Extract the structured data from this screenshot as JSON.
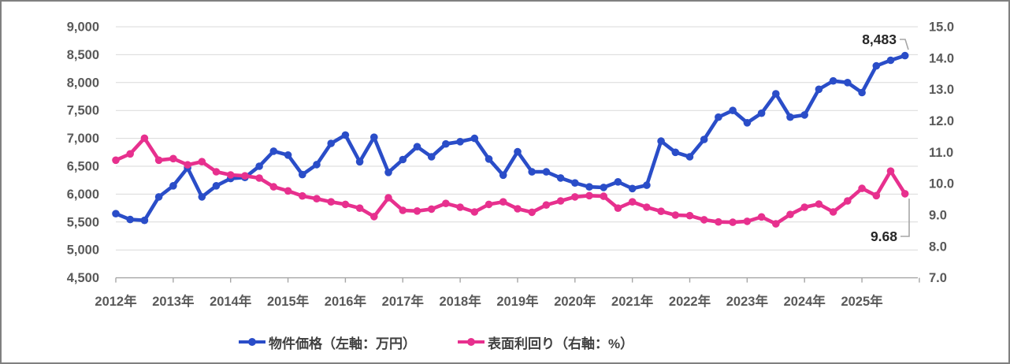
{
  "chart": {
    "annotations": {
      "price_latest_label": "8,483",
      "yield_latest_label": "9.68"
    },
    "legend": {
      "price_label": "物件価格（左軸：万円）",
      "yield_label": "表面利回り（右軸：%）"
    },
    "colors": {
      "price_series": "#2a4dc8",
      "yield_series": "#e7308e",
      "gridline": "#d9d9d9",
      "axis_line": "#a6a6a6",
      "axis_text": "#595959",
      "annotation_text": "#262626",
      "leader_line": "#a6a6a6",
      "frame_border": "#808080"
    }
  },
  "chart_data": {
    "type": "line",
    "frequency": "quarterly",
    "points_per_year": 4,
    "x_year_labels": [
      "2012年",
      "2013年",
      "2014年",
      "2015年",
      "2016年",
      "2017年",
      "2018年",
      "2019年",
      "2020年",
      "2021年",
      "2022年",
      "2023年",
      "2024年",
      "2025年"
    ],
    "left_axis": {
      "title": "物件価格（万円）",
      "min": 4500,
      "max": 9000,
      "step": 500,
      "tick_labels": [
        "9,000",
        "8,500",
        "8,000",
        "7,500",
        "7,000",
        "6,500",
        "6,000",
        "5,500",
        "5,000",
        "4,500"
      ]
    },
    "right_axis": {
      "title": "表面利回り（%）",
      "min": 7.0,
      "max": 15.0,
      "step": 1.0,
      "tick_labels": [
        "15.0",
        "14.0",
        "13.0",
        "12.0",
        "11.0",
        "10.0",
        "9.0",
        "8.0",
        "7.0"
      ]
    },
    "grid": true,
    "legend_position": "bottom",
    "series": [
      {
        "name": "物件価格（左軸：万円）",
        "axis": "left",
        "color": "#2a4dc8",
        "values": [
          5650,
          5545,
          5530,
          5950,
          6150,
          6470,
          5950,
          6150,
          6280,
          6300,
          6500,
          6770,
          6700,
          6350,
          6530,
          6910,
          7060,
          6580,
          7020,
          6390,
          6620,
          6850,
          6670,
          6900,
          6940,
          7000,
          6630,
          6340,
          6760,
          6400,
          6400,
          6290,
          6200,
          6130,
          6120,
          6220,
          6100,
          6160,
          6950,
          6750,
          6670,
          6980,
          7380,
          7500,
          7280,
          7450,
          7800,
          7380,
          7420,
          7880,
          8030,
          8000,
          7820,
          8300,
          8400,
          8483
        ],
        "last_value_annotation": "8,483"
      },
      {
        "name": "表面利回り（右軸：%）",
        "axis": "right",
        "color": "#e7308e",
        "values": [
          10.75,
          10.95,
          11.45,
          10.75,
          10.8,
          10.6,
          10.7,
          10.38,
          10.28,
          10.25,
          10.18,
          9.9,
          9.77,
          9.61,
          9.52,
          9.42,
          9.34,
          9.22,
          8.95,
          9.55,
          9.15,
          9.13,
          9.19,
          9.37,
          9.25,
          9.1,
          9.34,
          9.42,
          9.2,
          9.09,
          9.32,
          9.45,
          9.58,
          9.62,
          9.6,
          9.22,
          9.42,
          9.25,
          9.12,
          9.0,
          8.98,
          8.85,
          8.78,
          8.77,
          8.8,
          8.94,
          8.72,
          9.02,
          9.25,
          9.35,
          9.1,
          9.45,
          9.85,
          9.62,
          10.4,
          9.68
        ],
        "last_value_annotation": "9.68"
      }
    ]
  }
}
